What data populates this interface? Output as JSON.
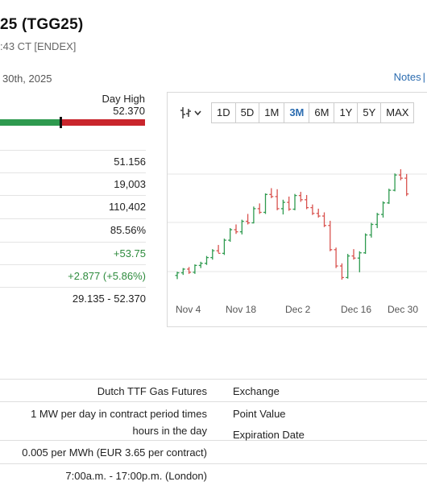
{
  "header": {
    "title": "25 (TGG25)",
    "subtitle": ":43 CT [ENDEX]",
    "date": " 30th, 2025",
    "notes_link": "Notes",
    "notes_sep": "|"
  },
  "day_high": {
    "label": "Day High",
    "value": "52.370"
  },
  "range_bar": {
    "position_fraction": 0.42,
    "colors": {
      "low_side": "#2e9a4f",
      "high_side": "#c9252c"
    }
  },
  "stats": [
    {
      "value": "51.156",
      "positive": false
    },
    {
      "value": "19,003",
      "positive": false
    },
    {
      "value": "110,402",
      "positive": false
    },
    {
      "value": "85.56%",
      "positive": false
    },
    {
      "value": "+53.75",
      "positive": true
    },
    {
      "value": "+2.877 (+5.86%)",
      "positive": true
    },
    {
      "value": "29.135 - 52.370",
      "positive": false
    }
  ],
  "chart_toolbar": {
    "chart_type_icon": "candlestick-icon",
    "ranges": [
      "1D",
      "5D",
      "1M",
      "3M",
      "6M",
      "1Y",
      "5Y",
      "MAX"
    ],
    "active_range": "3M"
  },
  "chart_data": {
    "type": "ohlc",
    "x_ticks": [
      "Nov 4",
      "Nov 18",
      "Dec 2",
      "Dec 16",
      "Dec 30"
    ],
    "grid": true,
    "colors": {
      "up": "#2e9a4f",
      "down": "#d9534f"
    },
    "bars": [
      {
        "o": 28.6,
        "h": 29.3,
        "l": 27.9,
        "c": 29.1
      },
      {
        "o": 29.1,
        "h": 30.0,
        "l": 28.7,
        "c": 29.8
      },
      {
        "o": 29.8,
        "h": 30.2,
        "l": 28.9,
        "c": 29.2
      },
      {
        "o": 29.2,
        "h": 30.7,
        "l": 28.9,
        "c": 30.5
      },
      {
        "o": 30.5,
        "h": 31.2,
        "l": 30.0,
        "c": 30.9
      },
      {
        "o": 30.9,
        "h": 32.3,
        "l": 30.6,
        "c": 32.0
      },
      {
        "o": 32.0,
        "h": 33.6,
        "l": 31.6,
        "c": 33.3
      },
      {
        "o": 33.3,
        "h": 34.4,
        "l": 32.9,
        "c": 32.8
      },
      {
        "o": 32.8,
        "h": 35.6,
        "l": 32.5,
        "c": 35.3
      },
      {
        "o": 35.3,
        "h": 37.6,
        "l": 35.0,
        "c": 37.3
      },
      {
        "o": 37.3,
        "h": 38.3,
        "l": 36.5,
        "c": 36.9
      },
      {
        "o": 36.9,
        "h": 39.2,
        "l": 36.4,
        "c": 38.9
      },
      {
        "o": 38.9,
        "h": 40.3,
        "l": 38.3,
        "c": 38.6
      },
      {
        "o": 38.6,
        "h": 41.7,
        "l": 38.5,
        "c": 41.3
      },
      {
        "o": 41.3,
        "h": 42.3,
        "l": 40.3,
        "c": 40.6
      },
      {
        "o": 40.6,
        "h": 44.2,
        "l": 40.3,
        "c": 44.0
      },
      {
        "o": 44.0,
        "h": 45.2,
        "l": 43.3,
        "c": 43.6
      },
      {
        "o": 43.6,
        "h": 45.0,
        "l": 41.0,
        "c": 41.3
      },
      {
        "o": 41.3,
        "h": 43.0,
        "l": 40.2,
        "c": 42.5
      },
      {
        "o": 42.5,
        "h": 43.6,
        "l": 40.9,
        "c": 41.2
      },
      {
        "o": 41.2,
        "h": 44.1,
        "l": 41.0,
        "c": 43.8
      },
      {
        "o": 43.8,
        "h": 44.5,
        "l": 42.6,
        "c": 43.0
      },
      {
        "o": 43.0,
        "h": 43.9,
        "l": 41.2,
        "c": 41.5
      },
      {
        "o": 41.5,
        "h": 42.1,
        "l": 40.1,
        "c": 40.4
      },
      {
        "o": 40.4,
        "h": 41.3,
        "l": 39.6,
        "c": 39.9
      },
      {
        "o": 39.9,
        "h": 40.6,
        "l": 37.8,
        "c": 38.1
      },
      {
        "o": 38.1,
        "h": 39.0,
        "l": 33.2,
        "c": 33.5
      },
      {
        "o": 33.5,
        "h": 33.9,
        "l": 30.0,
        "c": 30.4
      },
      {
        "o": 30.4,
        "h": 30.9,
        "l": 27.8,
        "c": 28.2
      },
      {
        "o": 28.2,
        "h": 32.7,
        "l": 28.0,
        "c": 32.3
      },
      {
        "o": 32.3,
        "h": 33.6,
        "l": 31.6,
        "c": 31.9
      },
      {
        "o": 31.9,
        "h": 33.2,
        "l": 29.2,
        "c": 32.9
      },
      {
        "o": 32.9,
        "h": 36.6,
        "l": 32.7,
        "c": 36.3
      },
      {
        "o": 36.3,
        "h": 38.6,
        "l": 35.8,
        "c": 38.3
      },
      {
        "o": 38.3,
        "h": 40.5,
        "l": 37.6,
        "c": 40.2
      },
      {
        "o": 40.2,
        "h": 42.7,
        "l": 39.6,
        "c": 42.4
      },
      {
        "o": 42.4,
        "h": 45.1,
        "l": 42.2,
        "c": 44.8
      },
      {
        "o": 44.8,
        "h": 48.0,
        "l": 44.6,
        "c": 47.7
      },
      {
        "o": 47.7,
        "h": 48.8,
        "l": 46.7,
        "c": 47.1
      },
      {
        "o": 47.1,
        "h": 47.9,
        "l": 43.7,
        "c": 44.1
      }
    ]
  },
  "contract_info": [
    {
      "value_lines": [
        "Dutch TTF Gas Futures"
      ],
      "label": "Exchange"
    },
    {
      "value_lines": [
        "1 MW per day in contract period times",
        "hours in the day"
      ],
      "label": "Point Value"
    },
    {
      "value_lines": [
        "0.005 per MWh (EUR 3.65 per contract)"
      ],
      "label": "Expiration Date"
    },
    {
      "value_lines": [
        "7:00a.m. - 17:00p.m. (London)"
      ],
      "label": ""
    }
  ]
}
